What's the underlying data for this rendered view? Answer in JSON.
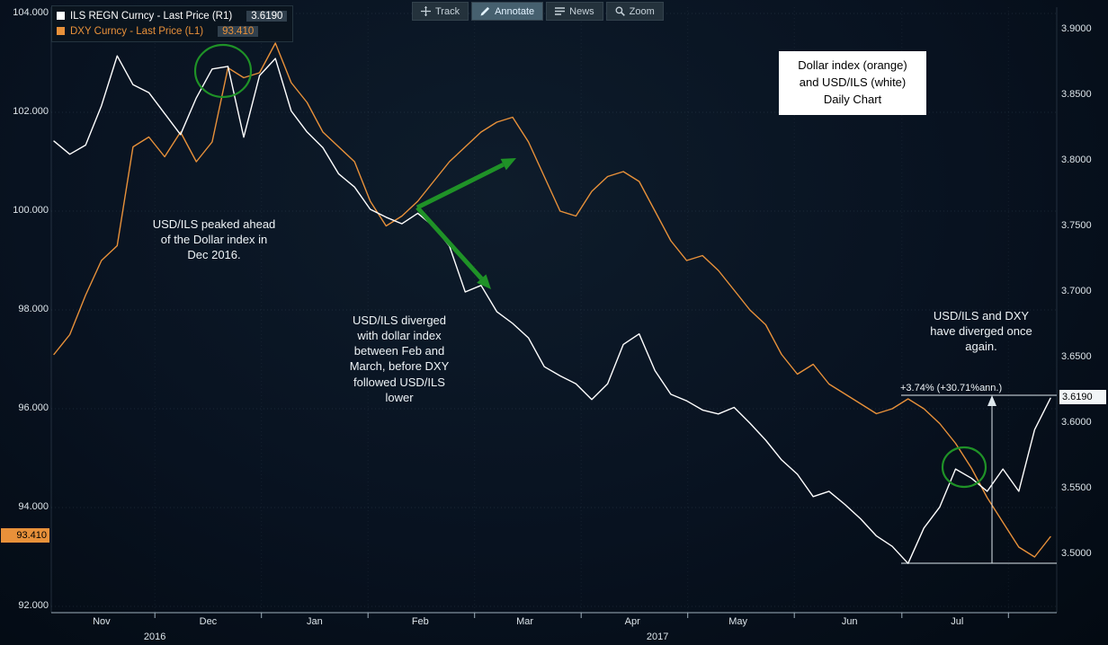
{
  "colors": {
    "background": "#081220",
    "white_line": "#ffffff",
    "orange_line": "#e8913a",
    "green_annotation": "#1f9227",
    "axis_text": "#dde5ea"
  },
  "legend": {
    "series": [
      {
        "label": "ILS REGN Curncy - Last Price (R1)",
        "value": "3.6190",
        "color": "#ffffff"
      },
      {
        "label": "DXY Curncy - Last Price (L1)",
        "value": "93.410",
        "color": "#e8913a"
      }
    ]
  },
  "toolbar": {
    "buttons": [
      {
        "label": "Track",
        "icon": "track-icon",
        "active": false
      },
      {
        "label": "Annotate",
        "icon": "annotate-icon",
        "active": true
      },
      {
        "label": "News",
        "icon": "news-icon",
        "active": false
      },
      {
        "label": "Zoom",
        "icon": "zoom-icon",
        "active": false
      }
    ]
  },
  "note_box": {
    "text": "Dollar index (orange)\nand USD/ILS (white)\nDaily Chart"
  },
  "annotations": {
    "peak_note": "USD/ILS peaked ahead\nof the Dollar index in\nDec 2016.",
    "diverge_note": "USD/ILS diverged\nwith dollar index\nbetween Feb and\nMarch, before DXY\nfollowed USD/ILS\nlower",
    "rediverge_note": "USD/ILS and DXY\nhave diverged once\nagain.",
    "change_label": "+3.74% (+30.71%ann.)"
  },
  "axes": {
    "left_ticks": [
      "104.000",
      "102.000",
      "100.000",
      "98.000",
      "96.000",
      "94.000",
      "92.000"
    ],
    "right_ticks": [
      "3.9000",
      "3.8500",
      "3.8000",
      "3.7500",
      "3.7000",
      "3.6500",
      "3.6000",
      "3.5500",
      "3.5000"
    ],
    "left_last_price": "93.410",
    "right_last_price": "3.6190",
    "months": [
      "Nov",
      "Dec",
      "Jan",
      "Feb",
      "Mar",
      "Apr",
      "May",
      "Jun",
      "Jul"
    ],
    "years": [
      "2016",
      "2017"
    ]
  },
  "chart_data": {
    "type": "line",
    "title": "Dollar index (orange) and USD/ILS (white) Daily Chart",
    "x_axis": {
      "months": [
        "Nov",
        "Dec",
        "Jan",
        "Feb",
        "Mar",
        "Apr",
        "May",
        "Jun",
        "Jul"
      ],
      "years": [
        "2016",
        "2017"
      ]
    },
    "left_axis": {
      "label": "DXY",
      "min": 92,
      "max": 104.2,
      "ticks": [
        104,
        102,
        100,
        98,
        96,
        94,
        92
      ]
    },
    "right_axis": {
      "label": "USD/ILS",
      "min": 3.48,
      "max": 3.92,
      "ticks": [
        3.9,
        3.85,
        3.8,
        3.75,
        3.7,
        3.65,
        3.6,
        3.55,
        3.5
      ]
    },
    "last_values": {
      "left": 93.41,
      "right": 3.619
    },
    "series": [
      {
        "name": "ILS REGN Curncy - Last Price (R1)",
        "axis": "right",
        "color": "#ffffff",
        "values": [
          3.815,
          3.805,
          3.812,
          3.842,
          3.88,
          3.858,
          3.852,
          3.836,
          3.82,
          3.848,
          3.87,
          3.872,
          3.818,
          3.865,
          3.878,
          3.838,
          3.822,
          3.81,
          3.79,
          3.78,
          3.763,
          3.757,
          3.752,
          3.76,
          3.75,
          3.735,
          3.7,
          3.705,
          3.685,
          3.676,
          3.665,
          3.643,
          3.636,
          3.63,
          3.618,
          3.63,
          3.66,
          3.668,
          3.64,
          3.622,
          3.617,
          3.61,
          3.607,
          3.612,
          3.6,
          3.587,
          3.572,
          3.561,
          3.544,
          3.548,
          3.538,
          3.527,
          3.514,
          3.506,
          3.493,
          3.52,
          3.536,
          3.565,
          3.558,
          3.548,
          3.565,
          3.548,
          3.595,
          3.619
        ]
      },
      {
        "name": "DXY Curncy - Last Price (L1)",
        "axis": "left",
        "color": "#e8913a",
        "values": [
          97.1,
          97.5,
          98.3,
          99.0,
          99.3,
          101.3,
          101.5,
          101.1,
          101.6,
          101.0,
          101.4,
          102.9,
          102.7,
          102.8,
          103.4,
          102.6,
          102.2,
          101.6,
          101.3,
          101.0,
          100.2,
          99.7,
          99.9,
          100.2,
          100.6,
          101.0,
          101.3,
          101.6,
          101.8,
          101.9,
          101.4,
          100.7,
          100.0,
          99.9,
          100.4,
          100.7,
          100.8,
          100.6,
          100.0,
          99.4,
          99.0,
          99.1,
          98.8,
          98.4,
          98.0,
          97.7,
          97.1,
          96.7,
          96.9,
          96.5,
          96.3,
          96.1,
          95.9,
          96.0,
          96.2,
          96.0,
          95.7,
          95.3,
          94.8,
          94.2,
          93.7,
          93.2,
          93.0,
          93.41
        ]
      }
    ],
    "annotations_text": [
      "USD/ILS peaked ahead of the Dollar index in Dec 2016.",
      "USD/ILS diverged with dollar index between Feb and March, before DXY followed USD/ILS lower",
      "USD/ILS and DXY have diverged once again.",
      "+3.74% (+30.71%ann.)"
    ],
    "legend_position": "top-left",
    "grid": true
  }
}
